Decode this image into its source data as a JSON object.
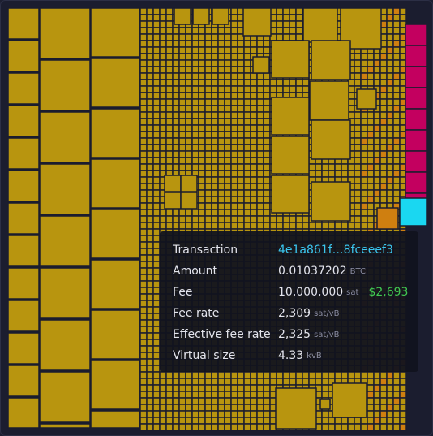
{
  "tooltip": {
    "rows": [
      {
        "label": "Transaction",
        "value": "4e1a861f…8fceeef3"
      },
      {
        "label": "Amount",
        "value": "0.01037202",
        "unit": "BTC"
      },
      {
        "label": "Fee",
        "value": "10,000,000",
        "unit": "sat",
        "fiat": "$2,693"
      },
      {
        "label": "Fee rate",
        "value": "2,309",
        "unit": "sat/vB"
      },
      {
        "label": "Effective fee rate",
        "value": "2,325",
        "unit": "sat/vB"
      },
      {
        "label": "Virtual size",
        "value": "4.33",
        "unit": "kvB"
      }
    ]
  }
}
